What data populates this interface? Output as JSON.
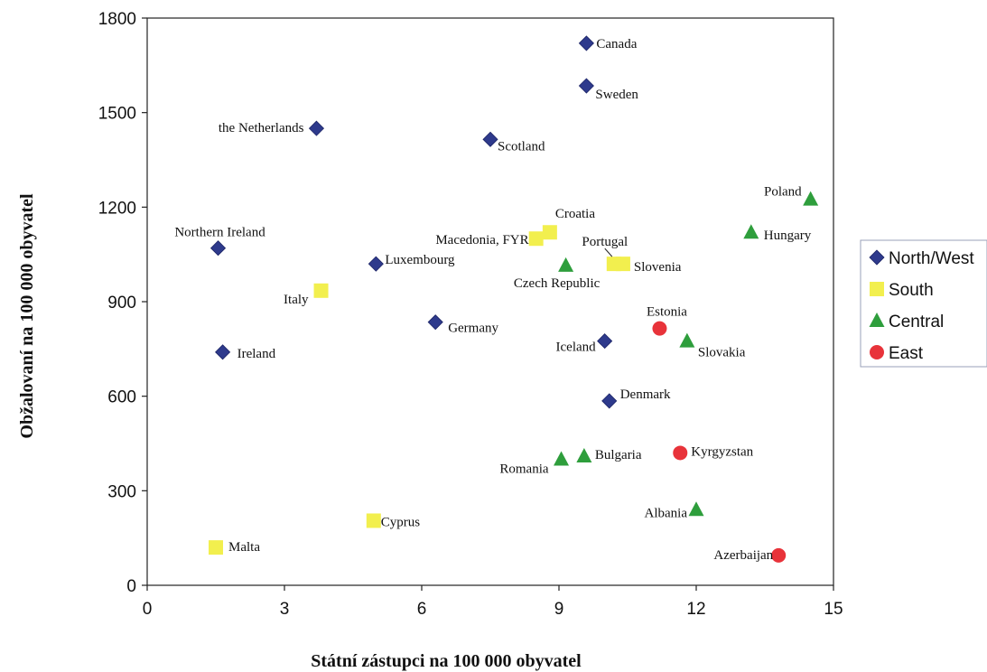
{
  "chart_data": {
    "type": "scatter",
    "xlabel": "Státní zástupci na 100 000 obyvatel",
    "ylabel": "Obžalovaní na 100 000 obyvatel",
    "xlim": [
      0,
      15
    ],
    "ylim": [
      0,
      1800
    ],
    "xticks": [
      0,
      3,
      6,
      9,
      12,
      15
    ],
    "yticks": [
      0,
      300,
      600,
      900,
      1200,
      1500,
      1800
    ],
    "grid": false,
    "legend_position": "right",
    "series": [
      {
        "name": "North/West",
        "marker": "diamond",
        "color": "#2e3a8c",
        "points": [
          {
            "label": "Canada",
            "x": 9.6,
            "y": 1720
          },
          {
            "label": "Sweden",
            "x": 9.6,
            "y": 1585
          },
          {
            "label": "the Netherlands",
            "x": 3.7,
            "y": 1450
          },
          {
            "label": "Scotland",
            "x": 7.5,
            "y": 1415
          },
          {
            "label": "Northern Ireland",
            "x": 1.55,
            "y": 1070
          },
          {
            "label": "Luxembourg",
            "x": 5.0,
            "y": 1020
          },
          {
            "label": "Germany",
            "x": 6.3,
            "y": 835
          },
          {
            "label": "Iceland",
            "x": 10.0,
            "y": 775
          },
          {
            "label": "Ireland",
            "x": 1.65,
            "y": 740
          },
          {
            "label": "Denmark",
            "x": 10.1,
            "y": 585
          }
        ]
      },
      {
        "name": "South",
        "marker": "square",
        "color": "#f2ef4e",
        "points": [
          {
            "label": "Croatia",
            "x": 8.8,
            "y": 1120
          },
          {
            "label": "Macedonia, FYR",
            "x": 8.5,
            "y": 1100
          },
          {
            "label": "Portugal",
            "x": 10.2,
            "y": 1020
          },
          {
            "label": "Slovenia",
            "x": 10.4,
            "y": 1020
          },
          {
            "label": "Italy",
            "x": 3.8,
            "y": 935
          },
          {
            "label": "Cyprus",
            "x": 4.95,
            "y": 205
          },
          {
            "label": "Malta",
            "x": 1.5,
            "y": 120
          }
        ]
      },
      {
        "name": "Central",
        "marker": "triangle",
        "color": "#2e9e3c",
        "points": [
          {
            "label": "Poland",
            "x": 14.5,
            "y": 1225
          },
          {
            "label": "Hungary",
            "x": 13.2,
            "y": 1120
          },
          {
            "label": "Czech Republic",
            "x": 9.15,
            "y": 1015
          },
          {
            "label": "Slovakia",
            "x": 11.8,
            "y": 775
          },
          {
            "label": "Bulgaria",
            "x": 9.55,
            "y": 410
          },
          {
            "label": "Romania",
            "x": 9.05,
            "y": 400
          },
          {
            "label": "Albania",
            "x": 12.0,
            "y": 240
          }
        ]
      },
      {
        "name": "East",
        "marker": "circle",
        "color": "#e8333a",
        "points": [
          {
            "label": "Estonia",
            "x": 11.2,
            "y": 815
          },
          {
            "label": "Kyrgyzstan",
            "x": 11.65,
            "y": 420
          },
          {
            "label": "Azerbaijan",
            "x": 13.8,
            "y": 95
          }
        ]
      }
    ]
  }
}
